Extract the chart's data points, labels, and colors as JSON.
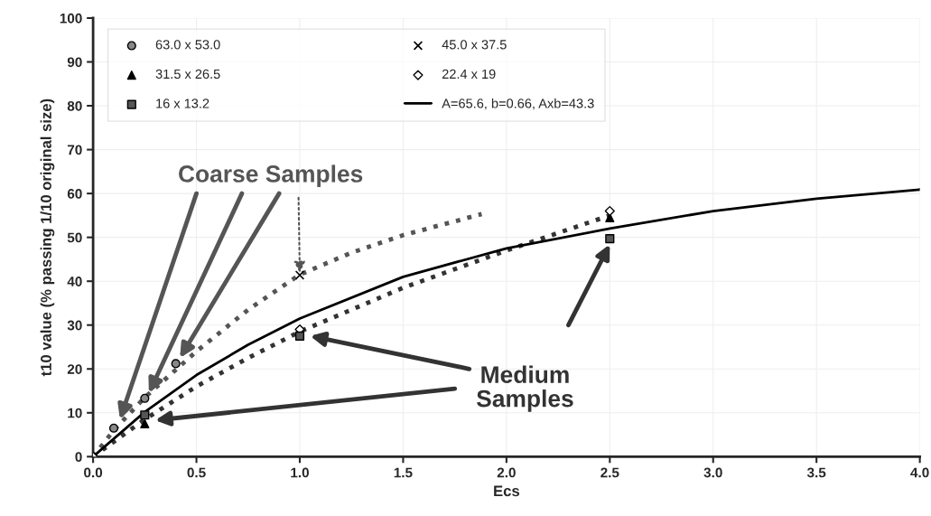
{
  "chart_data": {
    "type": "scatter",
    "xlabel": "Ecs",
    "ylabel": "t10 value (% passing 1/10 original size)",
    "xlim": [
      0,
      4
    ],
    "ylim": [
      0,
      100
    ],
    "xticks": [
      {
        "value": 0,
        "label": "0.0"
      },
      {
        "value": 0.5,
        "label": "0.5"
      },
      {
        "value": 1,
        "label": "1.0"
      },
      {
        "value": 1.5,
        "label": "1.5"
      },
      {
        "value": 2,
        "label": "2.0"
      },
      {
        "value": 2.5,
        "label": "2.5"
      },
      {
        "value": 3,
        "label": "3.0"
      },
      {
        "value": 3.5,
        "label": "3.5"
      },
      {
        "value": 4,
        "label": "4.0"
      }
    ],
    "yticks": [
      0,
      10,
      20,
      30,
      40,
      50,
      60,
      70,
      80,
      90,
      100
    ],
    "grid": true,
    "legend": "top left",
    "series": [
      {
        "type": "line",
        "color": "#555555",
        "line_style": "dotted",
        "marker": "none",
        "x": [
          0,
          0.1,
          0.25,
          0.5,
          0.75,
          1.0,
          1.25,
          1.5,
          1.88
        ],
        "values": [
          0,
          6.0,
          13.5,
          24.0,
          33.5,
          41.5,
          46.5,
          50.5,
          55.3
        ]
      },
      {
        "type": "line",
        "color": "#333333",
        "line_style": "dotted",
        "marker": "none",
        "x": [
          0,
          0.25,
          0.5,
          0.75,
          1.0,
          1.5,
          2.0,
          2.5
        ],
        "values": [
          0,
          8.5,
          16.0,
          22.5,
          28.5,
          38.5,
          47.0,
          55.0
        ]
      },
      {
        "type": "line",
        "name": "A=65.6, b=0.66, Axb=43.3",
        "color": "#000000",
        "line_style": "solid",
        "marker": "none",
        "x": [
          0,
          0.25,
          0.5,
          0.75,
          1.0,
          1.5,
          2.0,
          2.5,
          3.0,
          3.5,
          4.0
        ],
        "values": [
          0,
          10.2,
          18.6,
          25.5,
          31.5,
          41.0,
          47.5,
          52.0,
          56.0,
          58.8,
          60.9
        ]
      },
      {
        "name": "63.0 x 53.0",
        "color": "#888888",
        "marker": "circle",
        "x": [
          0.1,
          0.25,
          0.4
        ],
        "values": [
          6.5,
          13.3,
          21.2
        ]
      },
      {
        "name": "45.0 x 37.5",
        "color": "#000000",
        "marker": "cross",
        "x": [
          1.0
        ],
        "values": [
          41.4
        ]
      },
      {
        "name": "31.5 x 26.5",
        "color": "#000000",
        "marker": "triangle",
        "x": [
          0.25,
          1.0,
          2.5
        ],
        "values": [
          7.5,
          null,
          54.5
        ]
      },
      {
        "name": "22.4 x 19",
        "color": "#ffffff",
        "marker": "diamond",
        "x": [
          0,
          0.25,
          1.0,
          2.5
        ],
        "values": [
          0,
          null,
          29.0,
          56.0
        ]
      },
      {
        "name": "16 x 13.2",
        "color": "#555555",
        "marker": "square",
        "x": [
          0.25,
          1.0,
          2.5
        ],
        "values": [
          9.5,
          27.5,
          49.7
        ]
      }
    ],
    "annotations": [
      {
        "text": "Coarse Samples",
        "x": 1.0,
        "y": 41.4
      },
      "Medium\nSamples"
    ]
  }
}
